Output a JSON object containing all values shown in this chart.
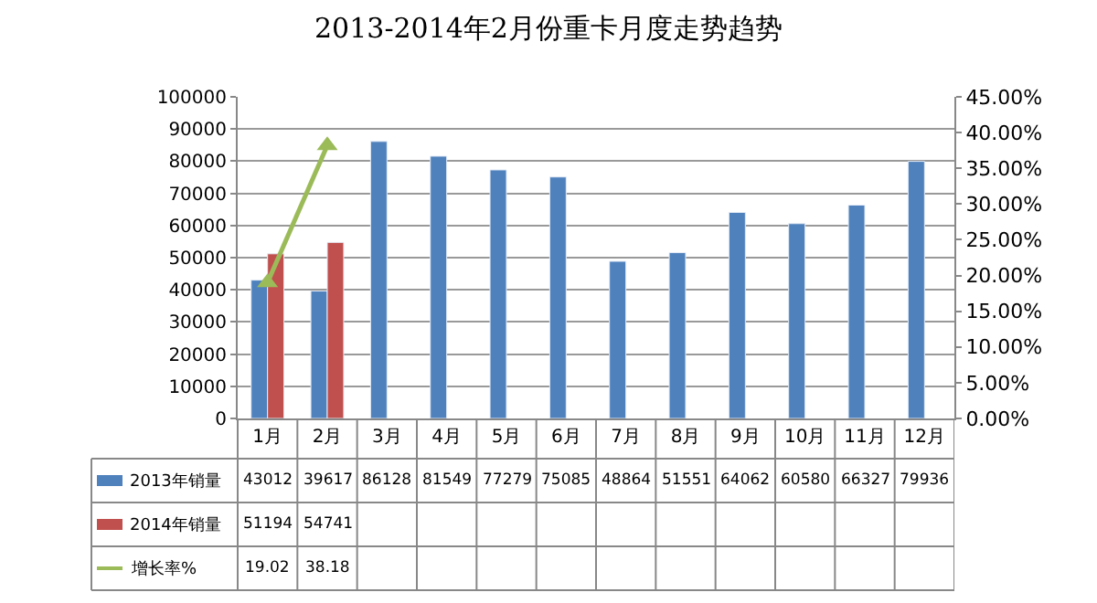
{
  "chart_data": {
    "type": "bar",
    "title": "2013-2014年2月份重卡月度走势趋势",
    "categories": [
      "1月",
      "2月",
      "3月",
      "4月",
      "5月",
      "6月",
      "7月",
      "8月",
      "9月",
      "10月",
      "11月",
      "12月"
    ],
    "series": [
      {
        "name": "2013年销量",
        "color": "#4f81bd",
        "values": [
          43012,
          39617,
          86128,
          81549,
          77279,
          75085,
          48864,
          51551,
          64062,
          60580,
          66327,
          79936
        ]
      },
      {
        "name": "2014年销量",
        "color": "#c0504d",
        "values": [
          51194,
          54741,
          null,
          null,
          null,
          null,
          null,
          null,
          null,
          null,
          null,
          null
        ]
      },
      {
        "name": "增长率%",
        "type": "line",
        "axis": "y2",
        "marker": "triangle",
        "color": "#9bbb59",
        "values": [
          19.02,
          38.18,
          null,
          null,
          null,
          null,
          null,
          null,
          null,
          null,
          null,
          null
        ]
      }
    ],
    "ylim": [
      0,
      100000
    ],
    "yticks": [
      0,
      10000,
      20000,
      30000,
      40000,
      50000,
      60000,
      70000,
      80000,
      90000,
      100000
    ],
    "y2lim": [
      0,
      45
    ],
    "y2ticks": [
      {
        "value": 0,
        "label": "0.00%"
      },
      {
        "value": 5,
        "label": "5.00%"
      },
      {
        "value": 10,
        "label": "10.00%"
      },
      {
        "value": 15,
        "label": "15.00%"
      },
      {
        "value": 20,
        "label": "20.00%"
      },
      {
        "value": 25,
        "label": "25.00%"
      },
      {
        "value": 30,
        "label": "30.00%"
      },
      {
        "value": 35,
        "label": "35.00%"
      },
      {
        "value": 40,
        "label": "40.00%"
      },
      {
        "value": 45,
        "label": "45.00%"
      }
    ],
    "grid": "y",
    "legend": "bottom",
    "data_labels": true
  }
}
